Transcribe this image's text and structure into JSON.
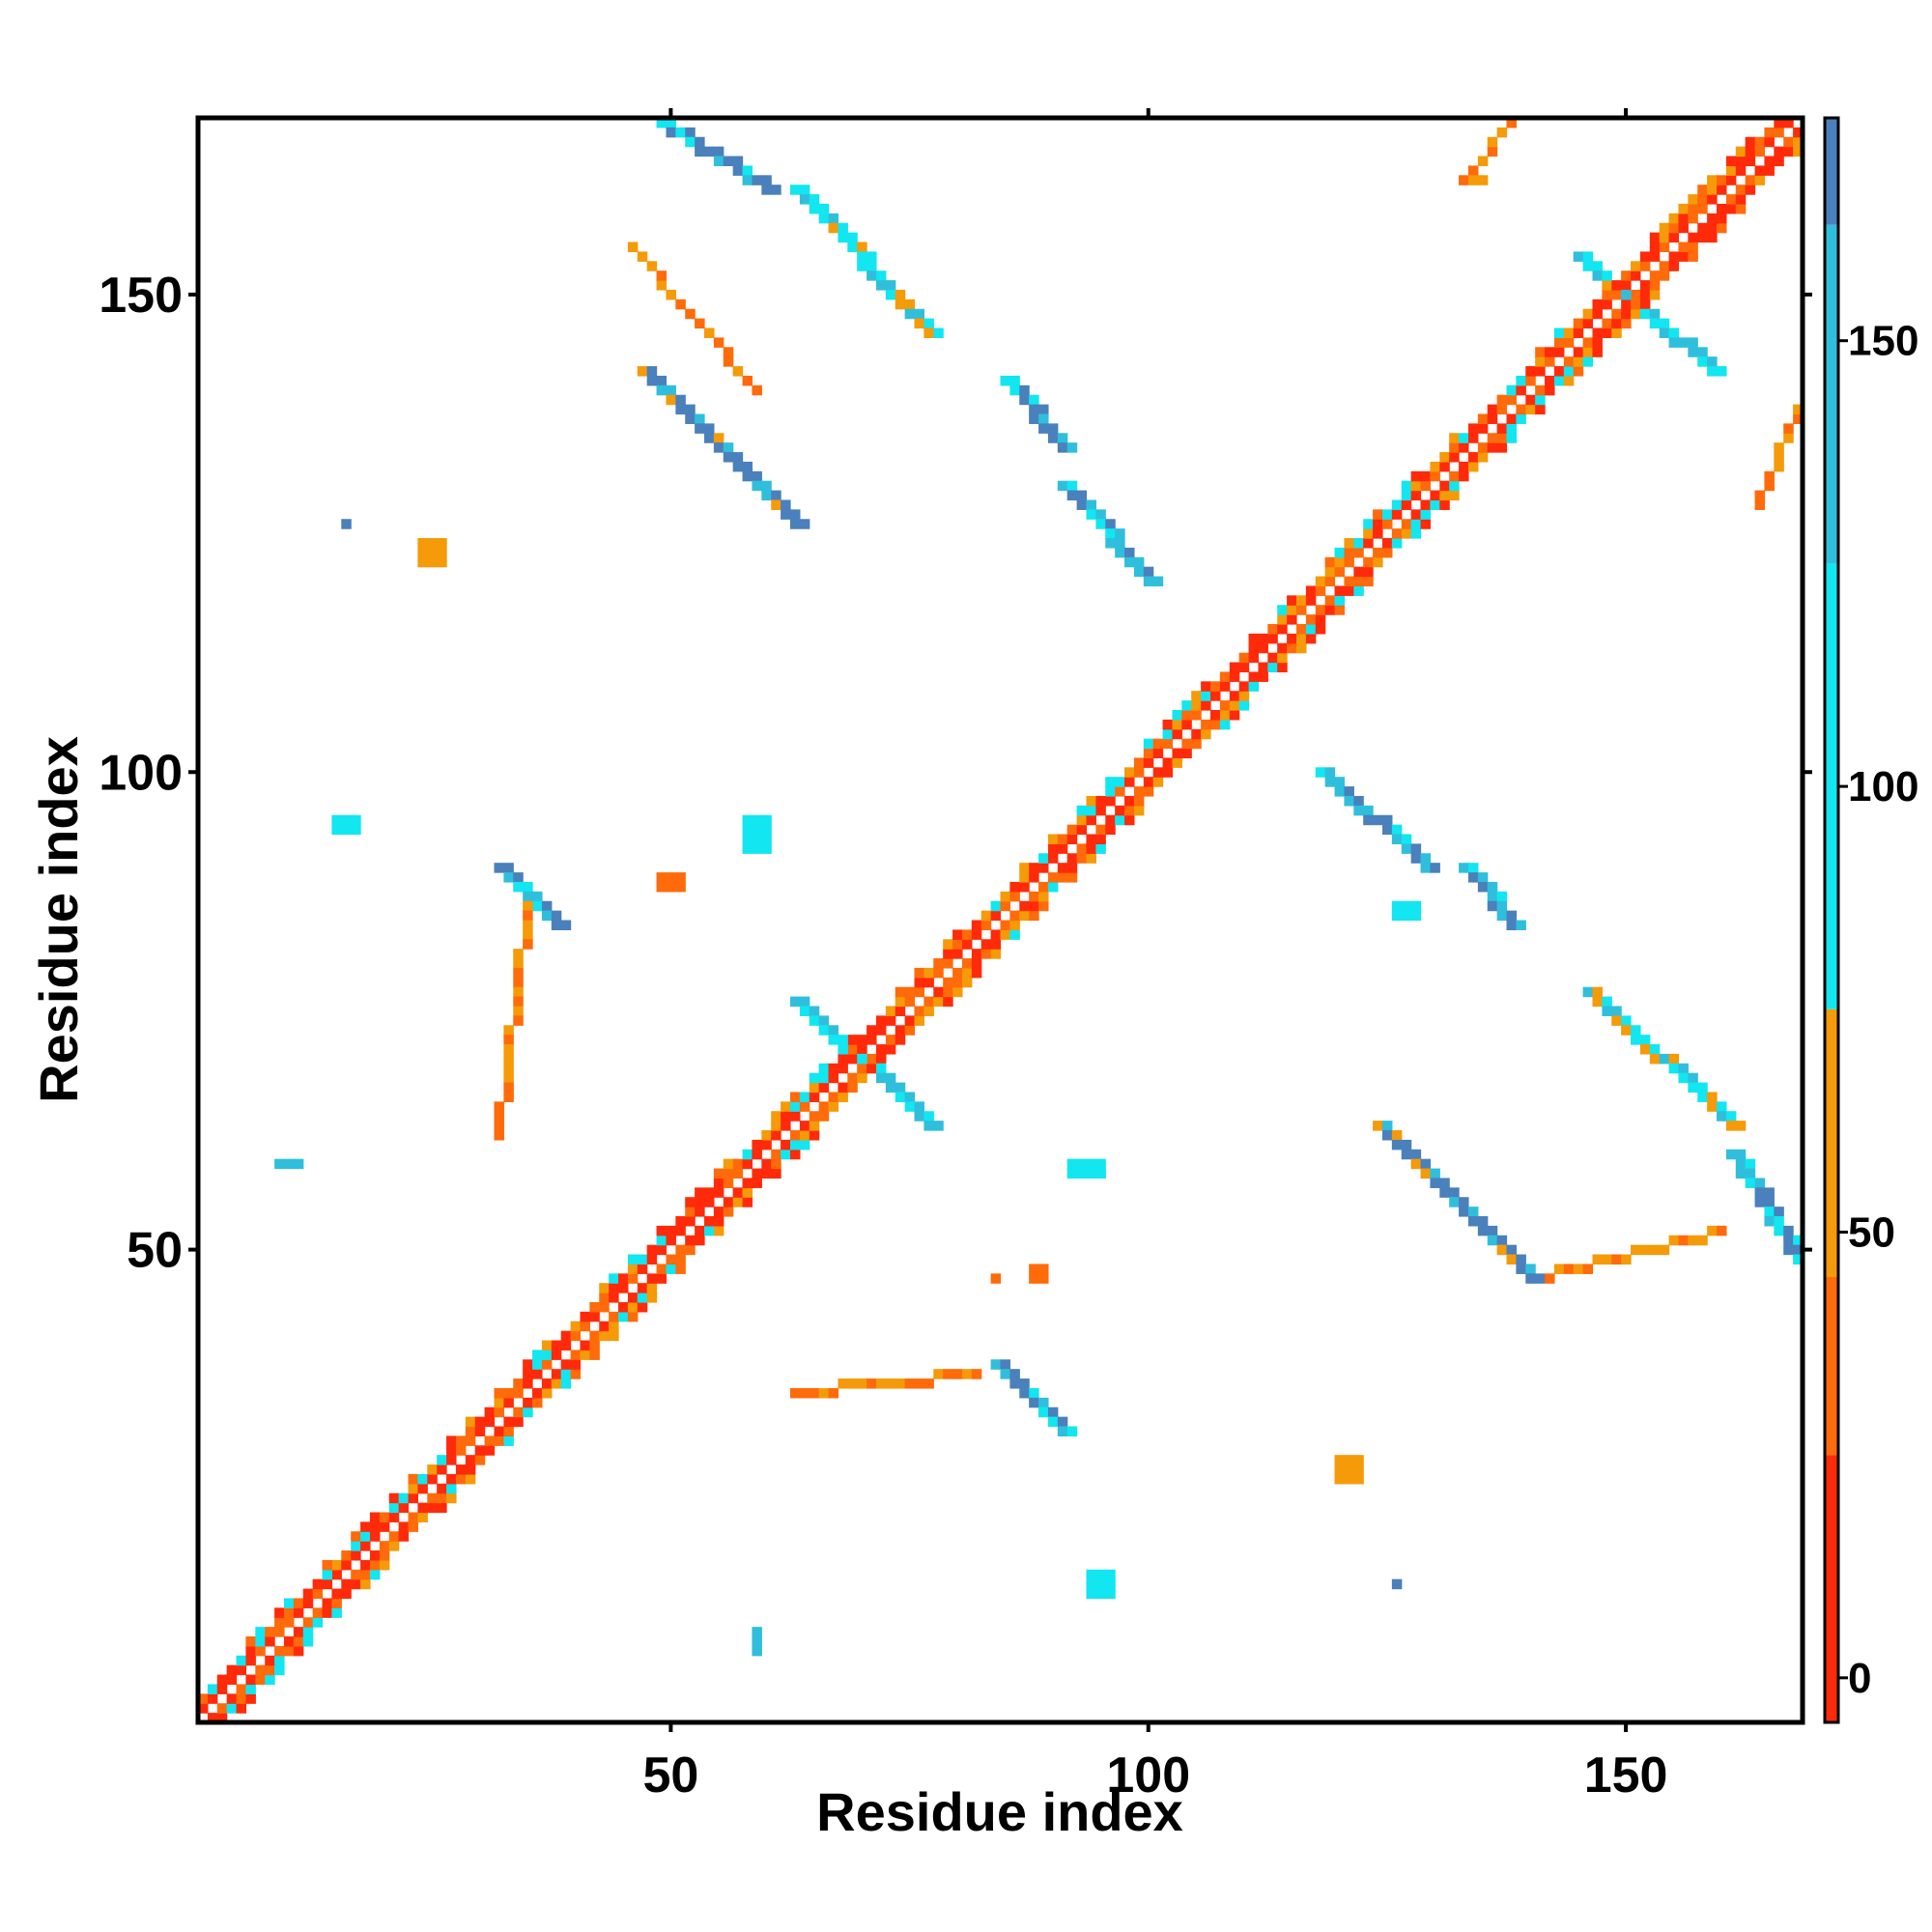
{
  "chart_data": {
    "type": "heatmap",
    "title": "",
    "xlabel": "Residue index",
    "ylabel": "Residue index",
    "xlim": [
      1,
      168
    ],
    "ylim": [
      1,
      168
    ],
    "x_ticks": [
      "50",
      "100",
      "150"
    ],
    "y_ticks": [
      "50",
      "100",
      "150"
    ],
    "colorbar": {
      "range": [
        -5,
        175
      ],
      "ticks": [
        "0",
        "50",
        "100",
        "150"
      ],
      "bands": [
        {
          "from": -5,
          "to": 25,
          "color": "#ff2a0a"
        },
        {
          "from": 25,
          "to": 45,
          "color": "#ff6a0a"
        },
        {
          "from": 45,
          "to": 75,
          "color": "#f59a08"
        },
        {
          "from": 75,
          "to": 125,
          "color": "#12e6f0"
        },
        {
          "from": 125,
          "to": 163,
          "color": "#2fbfdc"
        },
        {
          "from": 163,
          "to": 175,
          "color": "#4a80bb"
        }
      ]
    },
    "colors": {
      "red": "#ff2a0a",
      "orange_red": "#ff6a0a",
      "orange": "#f59a08",
      "cyan": "#12e6f0",
      "sky": "#2fbfdc",
      "steel": "#4a80bb"
    },
    "legend": "colorbar right",
    "grid": false,
    "segments": [
      {
        "from": [
          15,
          16
        ],
        "to": [
          66,
          67
        ],
        "side": 1,
        "colors": [
          "red",
          "orange_red",
          "orange",
          "cyan"
        ]
      },
      {
        "from": [
          15,
          16
        ],
        "to": [
          66,
          67
        ],
        "side": -1,
        "colors": [
          "red",
          "orange_red",
          "orange",
          "cyan"
        ]
      },
      {
        "from": [
          67,
          68
        ],
        "to": [
          77,
          78
        ],
        "side": 1,
        "colors": [
          "red",
          "orange_red",
          "orange"
        ]
      },
      {
        "from": [
          67,
          68
        ],
        "to": [
          77,
          78
        ],
        "side": -1,
        "colors": [
          "red",
          "orange_red",
          "orange"
        ]
      },
      {
        "from": [
          78,
          79
        ],
        "to": [
          144,
          145
        ],
        "side": 1,
        "colors": [
          "red",
          "orange_red",
          "orange",
          "cyan"
        ]
      },
      {
        "from": [
          78,
          79
        ],
        "to": [
          144,
          145
        ],
        "side": -1,
        "colors": [
          "red",
          "orange_red",
          "orange",
          "cyan"
        ]
      },
      {
        "from": [
          145,
          146
        ],
        "to": [
          156,
          157
        ],
        "side": 1,
        "colors": [
          "red",
          "orange_red",
          "orange"
        ]
      },
      {
        "from": [
          145,
          146
        ],
        "to": [
          156,
          157
        ],
        "side": -1,
        "colors": [
          "red",
          "orange_red",
          "orange"
        ]
      },
      {
        "from": [
          1,
          2
        ],
        "to": [
          14,
          15
        ],
        "side": 1,
        "colors": [
          "red",
          "orange_red",
          "cyan"
        ]
      },
      {
        "from": [
          1,
          2
        ],
        "to": [
          14,
          15
        ],
        "side": -1,
        "colors": [
          "red",
          "orange_red",
          "cyan"
        ]
      },
      {
        "from": [
          157,
          158
        ],
        "to": [
          168,
          169
        ],
        "side": 1,
        "colors": [
          "red",
          "orange_red",
          "orange"
        ]
      },
      {
        "from": [
          157,
          158
        ],
        "to": [
          168,
          169
        ],
        "side": -1,
        "colors": [
          "red",
          "orange_red",
          "orange"
        ]
      },
      {
        "from": [
          49,
          168
        ],
        "to": [
          60,
          161
        ],
        "colors": [
          "steel",
          "steel",
          "sky",
          "cyan"
        ]
      },
      {
        "from": [
          63,
          161
        ],
        "to": [
          77,
          146
        ],
        "colors": [
          "sky",
          "cyan",
          "cyan",
          "orange"
        ]
      },
      {
        "from": [
          47,
          142
        ],
        "to": [
          63,
          126
        ],
        "colors": [
          "steel",
          "steel",
          "sky",
          "orange"
        ]
      },
      {
        "from": [
          85,
          141
        ],
        "to": [
          91,
          134
        ],
        "colors": [
          "steel",
          "steel",
          "sky",
          "cyan"
        ]
      },
      {
        "from": [
          91,
          130
        ],
        "to": [
          100,
          120
        ],
        "colors": [
          "steel",
          "sky",
          "sky",
          "cyan"
        ]
      },
      {
        "from": [
          32,
          90
        ],
        "to": [
          38,
          84
        ],
        "colors": [
          "steel",
          "steel",
          "sky",
          "cyan"
        ]
      },
      {
        "from": [
          84,
          38
        ],
        "to": [
          91,
          31
        ],
        "colors": [
          "steel",
          "steel",
          "sky",
          "cyan"
        ]
      },
      {
        "from": [
          118,
          100
        ],
        "to": [
          129,
          90
        ],
        "colors": [
          "steel",
          "sky",
          "sky",
          "cyan"
        ]
      },
      {
        "from": [
          133,
          90
        ],
        "to": [
          138,
          84
        ],
        "colors": [
          "steel",
          "steel",
          "sky",
          "cyan"
        ]
      },
      {
        "from": [
          124,
          63
        ],
        "to": [
          140,
          47
        ],
        "colors": [
          "steel",
          "steel",
          "sky",
          "orange"
        ]
      },
      {
        "from": [
          146,
          77
        ],
        "to": [
          161,
          63
        ],
        "colors": [
          "sky",
          "cyan",
          "cyan",
          "orange"
        ]
      },
      {
        "from": [
          161,
          60
        ],
        "to": [
          168,
          49
        ],
        "colors": [
          "steel",
          "steel",
          "sky",
          "cyan"
        ]
      },
      {
        "from": [
          145,
          154
        ],
        "to": [
          159,
          142
        ],
        "colors": [
          "sky",
          "cyan",
          "sky",
          "cyan"
        ]
      },
      {
        "from": [
          63,
          76
        ],
        "to": [
          77,
          63
        ],
        "colors": [
          "sky",
          "cyan",
          "sky",
          "cyan"
        ]
      },
      {
        "from": [
          59,
          140
        ],
        "to": [
          46,
          155
        ],
        "colors": [
          "orange_red",
          "orange"
        ]
      },
      {
        "from": [
          35,
          86
        ],
        "to": [
          32,
          62
        ],
        "colors": [
          "orange_red",
          "orange"
        ]
      },
      {
        "from": [
          141,
          47
        ],
        "to": [
          160,
          52
        ],
        "colors": [
          "orange_red",
          "orange"
        ]
      },
      {
        "from": [
          63,
          35
        ],
        "to": [
          82,
          37
        ],
        "colors": [
          "orange_red",
          "orange"
        ]
      },
      {
        "from": [
          133,
          162
        ],
        "to": [
          138,
          168
        ],
        "colors": [
          "orange_red",
          "orange"
        ]
      },
      {
        "from": [
          164,
          128
        ],
        "to": [
          168,
          138
        ],
        "colors": [
          "orange_red",
          "orange"
        ]
      }
    ],
    "blocks": [
      {
        "x": [
          15,
          18
        ],
        "y": [
          94,
          96
        ],
        "color": "cyan"
      },
      {
        "x": [
          94,
          97
        ],
        "y": [
          14,
          17
        ],
        "color": "cyan"
      },
      {
        "x": [
          92,
          96
        ],
        "y": [
          58,
          60
        ],
        "color": "cyan"
      },
      {
        "x": [
          58,
          61
        ],
        "y": [
          92,
          96
        ],
        "color": "cyan"
      },
      {
        "x": [
          126,
          129
        ],
        "y": [
          85,
          87
        ],
        "color": "cyan"
      },
      {
        "x": [
          120,
          123
        ],
        "y": [
          26,
          29
        ],
        "color": "orange"
      },
      {
        "x": [
          24,
          27
        ],
        "y": [
          122,
          125
        ],
        "color": "orange"
      },
      {
        "x": [
          88,
          90
        ],
        "y": [
          47,
          49
        ],
        "color": "orange_red"
      },
      {
        "x": [
          49,
          52
        ],
        "y": [
          88,
          90
        ],
        "color": "orange_red"
      },
      {
        "x": [
          59,
          60
        ],
        "y": [
          8,
          11
        ],
        "color": "sky"
      },
      {
        "x": [
          126,
          127
        ],
        "y": [
          15,
          16
        ],
        "color": "steel"
      },
      {
        "x": [
          16,
          17
        ],
        "y": [
          126,
          127
        ],
        "color": "steel"
      },
      {
        "x": [
          9,
          12
        ],
        "y": [
          59,
          60
        ],
        "color": "sky"
      },
      {
        "x": [
          84,
          85
        ],
        "y": [
          47,
          48
        ],
        "color": "orange_red"
      },
      {
        "x": [
          133,
          136
        ],
        "y": [
          162,
          163
        ],
        "color": "orange"
      }
    ]
  }
}
